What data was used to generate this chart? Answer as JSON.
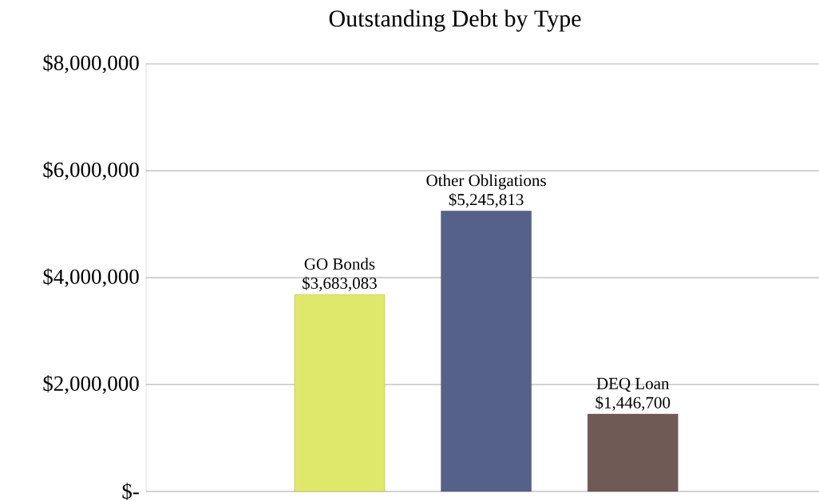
{
  "chart_data": {
    "type": "bar",
    "title": "Outstanding Debt by Type",
    "categories": [
      "GO Bonds",
      "Other Obligations",
      "DEQ Loan"
    ],
    "values": [
      3683083,
      5245813,
      1446700
    ],
    "value_labels": [
      "$3,683,083",
      "$5,245,813",
      "$1,446,700"
    ],
    "colors": [
      "#dfe86a",
      "#566189",
      "#6f5a55"
    ],
    "ylim": [
      0,
      8000000
    ],
    "yticks": [
      {
        "value": 0,
        "label": "$-"
      },
      {
        "value": 2000000,
        "label": "$2,000,000"
      },
      {
        "value": 4000000,
        "label": "$4,000,000"
      },
      {
        "value": 6000000,
        "label": "$6,000,000"
      },
      {
        "value": 8000000,
        "label": "$8,000,000"
      }
    ],
    "grid": "y"
  }
}
